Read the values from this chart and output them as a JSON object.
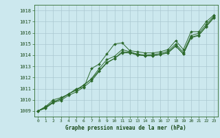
{
  "title": "Graphe pression niveau de la mer (hPa)",
  "background_color": "#cce8ee",
  "grid_color": "#aac8d0",
  "line_color": "#2d6a2d",
  "marker_color": "#2d6a2d",
  "xlim": [
    -0.5,
    23.5
  ],
  "ylim": [
    1008.5,
    1018.5
  ],
  "yticks": [
    1009,
    1010,
    1011,
    1012,
    1013,
    1014,
    1015,
    1016,
    1017,
    1018
  ],
  "xticks": [
    0,
    1,
    2,
    3,
    4,
    5,
    6,
    7,
    8,
    9,
    10,
    11,
    12,
    13,
    14,
    15,
    16,
    17,
    18,
    19,
    20,
    21,
    22,
    23
  ],
  "series": [
    {
      "x": [
        0,
        1,
        2,
        3,
        4,
        5,
        6,
        7,
        8,
        9,
        10,
        11,
        12,
        13,
        14,
        15,
        16,
        17,
        18,
        19,
        20,
        21,
        22,
        23
      ],
      "y": [
        1009.0,
        1009.4,
        1010.0,
        1010.2,
        1010.5,
        1011.0,
        1011.1,
        1012.8,
        1013.2,
        1014.1,
        1015.0,
        1015.1,
        1014.4,
        1014.3,
        1014.2,
        1014.2,
        1014.3,
        1014.5,
        1015.3,
        1014.5,
        1016.1,
        1016.1,
        1017.0,
        1017.6
      ],
      "markers": [
        0,
        1,
        2,
        3,
        4,
        5,
        6,
        7,
        8,
        9,
        10,
        11,
        12,
        13,
        14,
        15,
        16,
        17,
        18,
        19,
        20,
        21,
        22,
        23
      ]
    },
    {
      "x": [
        0,
        1,
        2,
        3,
        4,
        5,
        6,
        7,
        8,
        9,
        10,
        11,
        12,
        13,
        14,
        15,
        16,
        17,
        18,
        19,
        20,
        21,
        22,
        23
      ],
      "y": [
        1009.0,
        1009.3,
        1009.85,
        1010.05,
        1010.55,
        1010.85,
        1011.3,
        1011.9,
        1012.8,
        1013.6,
        1013.9,
        1014.5,
        1014.3,
        1014.1,
        1014.0,
        1014.05,
        1014.15,
        1014.35,
        1015.0,
        1014.25,
        1015.75,
        1015.95,
        1016.75,
        1017.5
      ],
      "markers": [
        0,
        1,
        2,
        3,
        4,
        5,
        6,
        7,
        8,
        9,
        10,
        11,
        12,
        13,
        14,
        15,
        16,
        17,
        18,
        19,
        20,
        21,
        22,
        23
      ]
    },
    {
      "x": [
        0,
        1,
        2,
        3,
        4,
        5,
        6,
        7,
        8,
        9,
        10,
        11,
        12,
        13,
        14,
        15,
        16,
        17,
        18,
        19,
        20,
        21,
        22,
        23
      ],
      "y": [
        1009.0,
        1009.25,
        1009.75,
        1009.95,
        1010.4,
        1010.7,
        1011.15,
        1011.7,
        1012.55,
        1013.3,
        1013.7,
        1014.2,
        1014.2,
        1014.0,
        1013.95,
        1013.95,
        1014.05,
        1014.25,
        1014.85,
        1014.1,
        1015.6,
        1015.8,
        1016.6,
        1017.4
      ],
      "markers": [
        0,
        1,
        2,
        3,
        4,
        5,
        6,
        7,
        8,
        9,
        10,
        11,
        12,
        13,
        14,
        15,
        16,
        17,
        18,
        19,
        20,
        21,
        22,
        23
      ]
    },
    {
      "x": [
        0,
        5,
        6,
        7,
        8,
        9,
        10,
        11,
        12,
        13,
        14,
        15,
        16,
        17,
        18,
        19,
        20,
        21,
        22,
        23
      ],
      "y": [
        1009.0,
        1010.9,
        1011.35,
        1011.85,
        1012.6,
        1013.35,
        1013.7,
        1014.3,
        1014.25,
        1014.05,
        1013.95,
        1013.95,
        1014.05,
        1014.2,
        1014.8,
        1014.1,
        1015.55,
        1015.75,
        1016.55,
        1017.35
      ],
      "markers": [
        0,
        5,
        6,
        7,
        8,
        9,
        10,
        11,
        12,
        13,
        14,
        15,
        16,
        17,
        18,
        19,
        20,
        21,
        22,
        23
      ]
    }
  ]
}
